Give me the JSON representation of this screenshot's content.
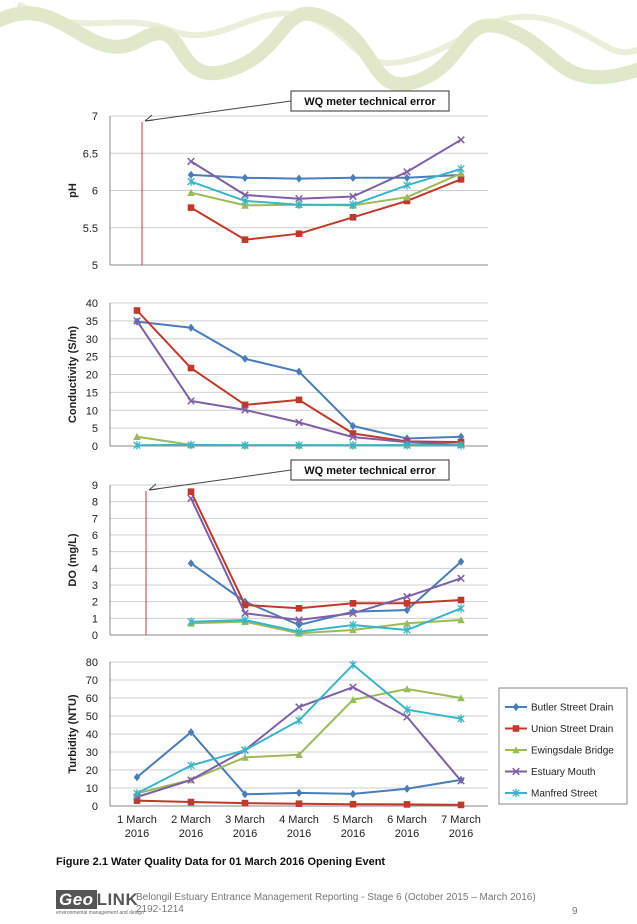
{
  "colors": {
    "Butler Street Drain": "#4a7ebb",
    "Union Street Drain": "#c0392b",
    "Ewingsdale Bridge": "#9bbb59",
    "Estuary Mouth": "#7f5fa6",
    "Manfred Street": "#38b6c8",
    "error_line": "#d33",
    "swirl": "#dfe8c8"
  },
  "x_categories": [
    [
      "1 March",
      "2016"
    ],
    [
      "2 March",
      "2016"
    ],
    [
      "3 March",
      "2016"
    ],
    [
      "4 March",
      "2016"
    ],
    [
      "5 March",
      "2016"
    ],
    [
      "6 March",
      "2016"
    ],
    [
      "7 March",
      "2016"
    ]
  ],
  "annotation_text": "WQ meter technical error",
  "legend_entries": [
    "Butler Street Drain",
    "Union Street Drain",
    "Ewingsdale Bridge",
    "Estuary Mouth",
    "Manfred Street"
  ],
  "chart_data": [
    {
      "type": "line",
      "ylabel": "pH",
      "ylim": [
        5,
        7
      ],
      "yticks": [
        "5",
        "5.5",
        "6",
        "6.5",
        "7"
      ],
      "annotation": "WQ meter technical error",
      "series": [
        {
          "name": "Butler Street Drain",
          "marker": "diamond",
          "values": [
            null,
            6.21,
            6.17,
            6.16,
            6.17,
            6.17,
            6.21
          ]
        },
        {
          "name": "Union Street Drain",
          "marker": "square",
          "values": [
            null,
            5.77,
            5.34,
            5.42,
            5.64,
            5.86,
            6.15
          ]
        },
        {
          "name": "Ewingsdale Bridge",
          "marker": "triangle",
          "values": [
            null,
            5.97,
            5.8,
            5.81,
            5.8,
            5.91,
            6.23
          ]
        },
        {
          "name": "Estuary Mouth",
          "marker": "x",
          "values": [
            null,
            6.39,
            5.94,
            5.89,
            5.92,
            6.25,
            6.68
          ]
        },
        {
          "name": "Manfred Street",
          "marker": "star",
          "values": [
            null,
            6.12,
            5.86,
            5.81,
            5.81,
            6.07,
            6.29
          ]
        }
      ]
    },
    {
      "type": "line",
      "ylabel": "Conductivity (S/m)",
      "ylim": [
        0,
        40
      ],
      "yticks": [
        "0",
        "5",
        "10",
        "15",
        "20",
        "25",
        "30",
        "35",
        "40"
      ],
      "series": [
        {
          "name": "Butler Street Drain",
          "marker": "diamond",
          "values": [
            34.8,
            33.1,
            24.4,
            20.8,
            5.6,
            2.1,
            2.6
          ]
        },
        {
          "name": "Union Street Drain",
          "marker": "square",
          "values": [
            37.9,
            21.8,
            11.5,
            12.9,
            3.5,
            1.3,
            1.1
          ]
        },
        {
          "name": "Ewingsdale Bridge",
          "marker": "triangle",
          "values": [
            2.6,
            0.3,
            0.2,
            0.2,
            0.2,
            0.3,
            0.4
          ]
        },
        {
          "name": "Estuary Mouth",
          "marker": "x",
          "values": [
            35.0,
            12.6,
            10.1,
            6.6,
            2.5,
            1.1,
            0.3
          ]
        },
        {
          "name": "Manfred Street",
          "marker": "star",
          "values": [
            0.2,
            0.3,
            0.2,
            0.2,
            0.2,
            0.2,
            0.2
          ]
        }
      ]
    },
    {
      "type": "line",
      "ylabel": "DO (mg/L)",
      "ylim": [
        0,
        9
      ],
      "yticks": [
        "0",
        "1",
        "2",
        "3",
        "4",
        "5",
        "6",
        "7",
        "8",
        "9"
      ],
      "annotation": "WQ meter technical error",
      "series": [
        {
          "name": "Butler Street Drain",
          "marker": "diamond",
          "values": [
            null,
            4.3,
            2.0,
            0.6,
            1.4,
            1.5,
            4.4
          ]
        },
        {
          "name": "Union Street Drain",
          "marker": "square",
          "values": [
            null,
            8.6,
            1.8,
            1.6,
            1.9,
            1.9,
            2.1
          ]
        },
        {
          "name": "Ewingsdale Bridge",
          "marker": "triangle",
          "values": [
            null,
            0.7,
            0.8,
            0.1,
            0.3,
            0.7,
            0.9
          ]
        },
        {
          "name": "Estuary Mouth",
          "marker": "x",
          "values": [
            null,
            8.2,
            1.3,
            0.9,
            1.3,
            2.3,
            3.4
          ]
        },
        {
          "name": "Manfred Street",
          "marker": "star",
          "values": [
            null,
            0.8,
            0.9,
            0.2,
            0.6,
            0.3,
            1.6
          ]
        }
      ]
    },
    {
      "type": "line",
      "ylabel": "Turbidity (NTU)",
      "ylim": [
        0,
        80
      ],
      "yticks": [
        "0",
        "10",
        "20",
        "30",
        "40",
        "50",
        "60",
        "70",
        "80"
      ],
      "series": [
        {
          "name": "Butler Street Drain",
          "marker": "diamond",
          "values": [
            16,
            41,
            6.5,
            7.3,
            6.7,
            9.6,
            14.5
          ]
        },
        {
          "name": "Union Street Drain",
          "marker": "square",
          "values": [
            3,
            2.2,
            1.6,
            1.3,
            1.0,
            0.9,
            0.6
          ]
        },
        {
          "name": "Ewingsdale Bridge",
          "marker": "triangle",
          "values": [
            7,
            14.5,
            27,
            28.5,
            59,
            65,
            60
          ]
        },
        {
          "name": "Estuary Mouth",
          "marker": "x",
          "values": [
            5,
            14.5,
            31,
            55,
            66,
            49.5,
            14
          ]
        },
        {
          "name": "Manfred Street",
          "marker": "star",
          "values": [
            7,
            22.5,
            31,
            47.5,
            78.5,
            53.5,
            48.5
          ]
        }
      ]
    }
  ],
  "caption": "Figure 2.1   Water Quality Data for 01 March 2016 Opening Event",
  "footer": {
    "logo_geo": "Geo",
    "logo_link": "LINK",
    "logo_tagline": "environmental management and design",
    "text": "Belongil Estuary Entrance Management Reporting - Stage 6 (October 2015 – March 2016)",
    "ref": "2192-1214",
    "page": "9"
  }
}
